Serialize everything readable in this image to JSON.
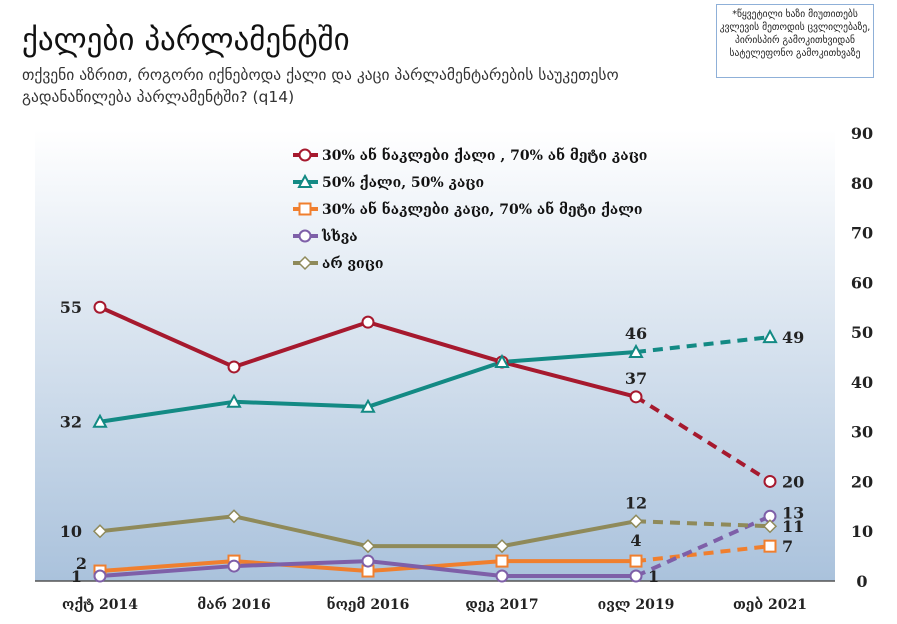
{
  "title": "ქალები პარლამენტში",
  "subtitle": "თქვენი აზრით, როგორი იქნებოდა ქალი და კაცი პარლამენტარების საუკეთესო გადანაწილება პარლამენტში? (q14)",
  "note": "*წყვეტილი ხაზი მიუთითებს კვლევის მეთოდის ცვლილებაზე, პირისპირ გამოკითხვიდან სატელეფონო გამოკითხვაზე",
  "chart_data": {
    "type": "line",
    "categories": [
      "ოქტ 2014",
      "მარ 2016",
      "ნოემ 2016",
      "დეკ 2017",
      "ივლ 2019",
      "თებ 2021"
    ],
    "yaxis": {
      "position": "right",
      "ylim": [
        0,
        90
      ],
      "ticks": [
        "0",
        "10",
        "20",
        "30",
        "40",
        "50",
        "60",
        "70",
        "80",
        "90"
      ]
    },
    "legend_position": "top-center",
    "dashed_from_index": 4,
    "series": [
      {
        "name": "30% ან ნაკლები ქალი , 70% ან მეტი კაცი",
        "color": "#a6192e",
        "marker": "circle",
        "values": [
          55,
          43,
          52,
          44,
          37,
          20
        ],
        "labels": [
          "55",
          null,
          null,
          null,
          "37",
          "20"
        ],
        "label_pos": [
          "left",
          null,
          null,
          null,
          "above",
          "right"
        ]
      },
      {
        "name": "50% ქალი, 50% კაცი",
        "color": "#138a84",
        "marker": "triangle",
        "values": [
          32,
          36,
          35,
          44,
          46,
          49
        ],
        "labels": [
          "32",
          null,
          null,
          null,
          "46",
          "49"
        ],
        "label_pos": [
          "left",
          null,
          null,
          null,
          "above",
          "right"
        ]
      },
      {
        "name": "30% ან ნაკლები კაცი, 70% ან მეტი ქალი",
        "color": "#f07f2e",
        "marker": "square",
        "values": [
          2,
          4,
          2,
          4,
          4,
          7
        ],
        "labels": [
          "2",
          null,
          null,
          null,
          "4",
          "7"
        ],
        "label_pos": [
          "left-above",
          null,
          null,
          null,
          "above-far",
          "right"
        ]
      },
      {
        "name": "სხვა",
        "color": "#7e5fa8",
        "marker": "circle",
        "values": [
          1,
          3,
          4,
          1,
          1,
          13
        ],
        "labels": [
          "1",
          null,
          null,
          null,
          "1",
          "13"
        ],
        "label_pos": [
          "left",
          null,
          null,
          null,
          "right",
          "right-above"
        ]
      },
      {
        "name": "არ ვიცი",
        "color": "#8f8a5a",
        "marker": "diamond",
        "values": [
          10,
          13,
          7,
          7,
          12,
          11
        ],
        "labels": [
          "10",
          null,
          null,
          null,
          "12",
          "11"
        ],
        "label_pos": [
          "left",
          null,
          null,
          null,
          "above",
          "right-below"
        ]
      }
    ]
  }
}
